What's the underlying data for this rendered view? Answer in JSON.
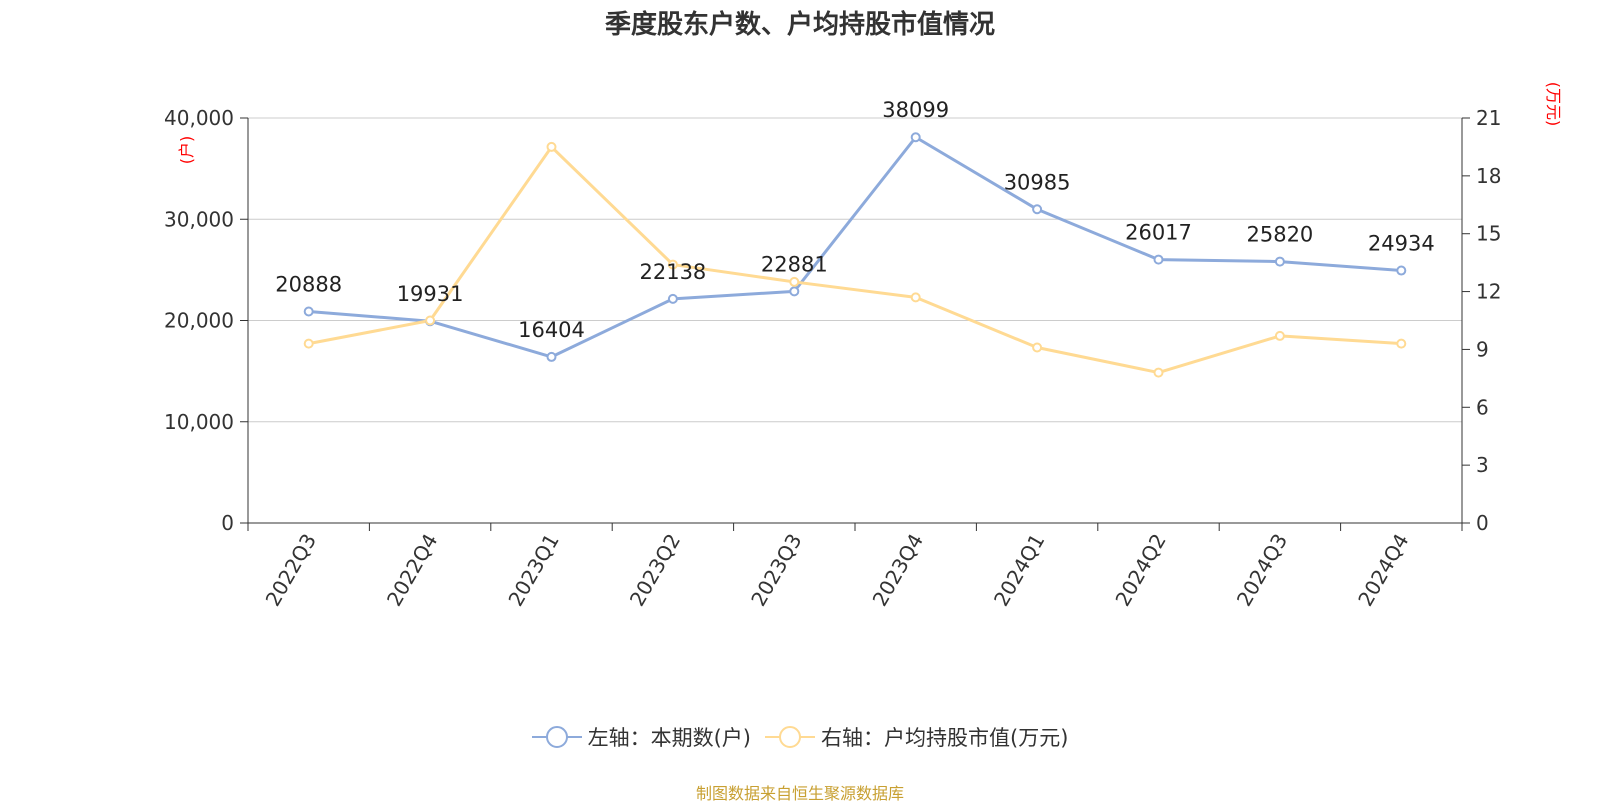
{
  "title": "季度股东户数、户均持股市值情况",
  "source": "制图数据来自恒生聚源数据库",
  "colors": {
    "left_series": "#8DAADB",
    "right_series": "#FFDA93",
    "unit_label": "#FF0000",
    "source": "#C8A032",
    "grid": "#CCCCCC",
    "axis": "#333333"
  },
  "chart_data": {
    "type": "line",
    "categories": [
      "2022Q3",
      "2022Q4",
      "2023Q1",
      "2023Q2",
      "2023Q3",
      "2023Q4",
      "2024Q1",
      "2024Q2",
      "2024Q3",
      "2024Q4"
    ],
    "series": [
      {
        "name": "左轴：本期数(户)",
        "axis": "left",
        "values": [
          20888,
          19931,
          16404,
          22138,
          22881,
          38099,
          30985,
          26017,
          25820,
          24934
        ],
        "data_labels": [
          "20888",
          "19931",
          "16404",
          "22138",
          "22881",
          "38099",
          "30985",
          "26017",
          "25820",
          "24934"
        ]
      },
      {
        "name": "右轴：户均持股市值(万元)",
        "axis": "right",
        "values": [
          9.3,
          10.5,
          19.5,
          13.4,
          12.5,
          11.7,
          9.1,
          7.8,
          9.7,
          9.3
        ]
      }
    ],
    "y_left": {
      "unit": "(户)",
      "range": [
        0,
        40000
      ],
      "ticks": [
        0,
        10000,
        20000,
        30000,
        40000
      ],
      "tick_labels": [
        "0",
        "10,000",
        "20,000",
        "30,000",
        "40,000"
      ]
    },
    "y_right": {
      "unit": "(万元)",
      "range": [
        0,
        21
      ],
      "ticks": [
        0,
        3,
        6,
        9,
        12,
        15,
        18,
        21
      ],
      "tick_labels": [
        "0",
        "3",
        "6",
        "9",
        "12",
        "15",
        "18",
        "21"
      ]
    },
    "grid": true,
    "legend_position": "bottom"
  }
}
